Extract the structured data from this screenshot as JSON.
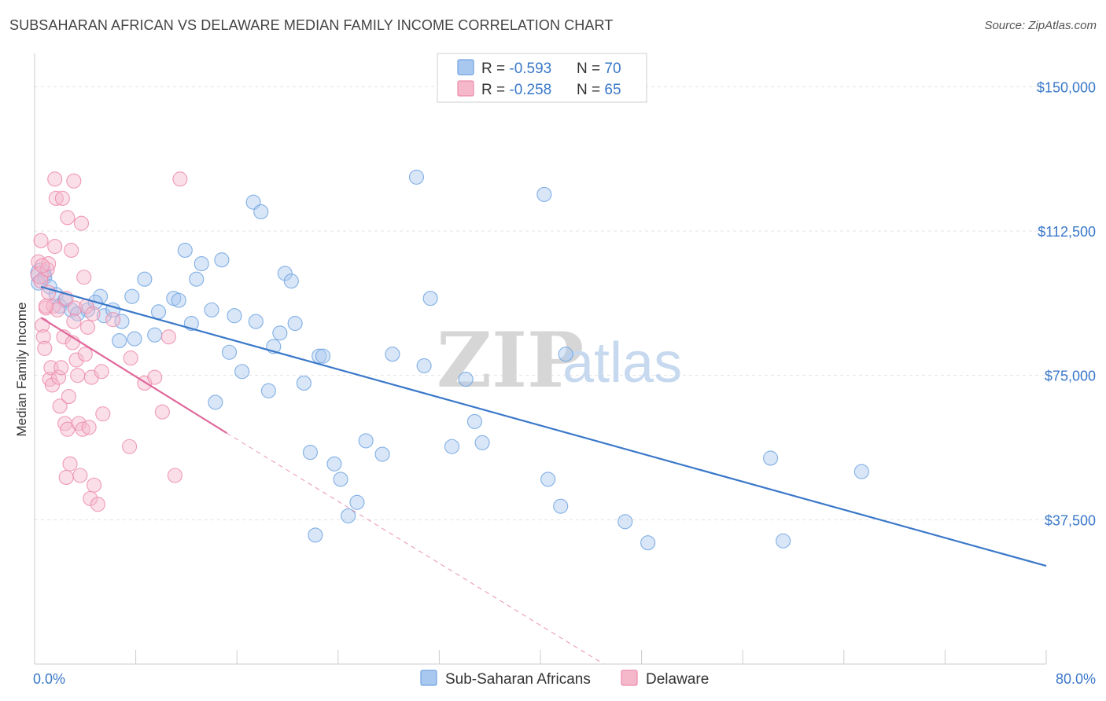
{
  "header": {
    "title": "SUBSAHARAN AFRICAN VS DELAWARE MEDIAN FAMILY INCOME CORRELATION CHART",
    "source": "Source: ZipAtlas.com"
  },
  "watermark": {
    "zip": "ZIP",
    "atlas": "atlas"
  },
  "legend": {
    "rows": [
      {
        "r_label": "R = ",
        "r_value": "-0.593",
        "n_label": "N = ",
        "n_value": "70",
        "color": "#a9c8f0"
      },
      {
        "r_label": "R = ",
        "r_value": "-0.258",
        "n_label": "N = ",
        "n_value": "65",
        "color": "#f5b8cb"
      }
    ]
  },
  "chart_data": {
    "type": "scatter",
    "title": "SUBSAHARAN AFRICAN VS DELAWARE MEDIAN FAMILY INCOME CORRELATION CHART",
    "xlabel": "",
    "ylabel": "Median Family Income",
    "xlim": [
      0,
      80
    ],
    "ylim": [
      0,
      157000
    ],
    "x_tick_labels": {
      "min": "0.0%",
      "max": "80.0%"
    },
    "y_ticks": [
      {
        "value": 37500,
        "label": "$37,500"
      },
      {
        "value": 75000,
        "label": "$75,000"
      },
      {
        "value": 112500,
        "label": "$112,500"
      },
      {
        "value": 150000,
        "label": "$150,000"
      }
    ],
    "grid": true,
    "legend_position": "bottom-center",
    "series": [
      {
        "name": "Sub-Saharan Africans",
        "color": "#6fa3e0",
        "fill": "#a9c8f0",
        "trend": {
          "x0": 0.5,
          "y0": 98000,
          "x1": 80,
          "y1": 25500,
          "color": "#3a78c9"
        },
        "points": [
          [
            0.5,
            101500
          ],
          [
            0.8,
            100500
          ],
          [
            1.2,
            98000
          ],
          [
            1.7,
            96000
          ],
          [
            2.0,
            93000
          ],
          [
            2.4,
            94500
          ],
          [
            2.9,
            92000
          ],
          [
            3.4,
            91000
          ],
          [
            4.2,
            92000
          ],
          [
            5.2,
            95500
          ],
          [
            4.8,
            94000
          ],
          [
            5.5,
            90500
          ],
          [
            6.2,
            92000
          ],
          [
            6.7,
            84000
          ],
          [
            6.9,
            89000
          ],
          [
            7.7,
            95500
          ],
          [
            7.9,
            84500
          ],
          [
            8.7,
            100000
          ],
          [
            9.5,
            85500
          ],
          [
            9.8,
            91500
          ],
          [
            11.0,
            95000
          ],
          [
            11.4,
            94500
          ],
          [
            11.9,
            107500
          ],
          [
            12.4,
            88500
          ],
          [
            12.8,
            100000
          ],
          [
            13.2,
            104000
          ],
          [
            14.0,
            92000
          ],
          [
            14.8,
            105000
          ],
          [
            14.3,
            68000
          ],
          [
            15.4,
            81000
          ],
          [
            15.8,
            90500
          ],
          [
            16.4,
            76000
          ],
          [
            17.3,
            120000
          ],
          [
            17.5,
            89000
          ],
          [
            17.9,
            117500
          ],
          [
            18.5,
            71000
          ],
          [
            18.9,
            82500
          ],
          [
            19.4,
            86000
          ],
          [
            19.8,
            101500
          ],
          [
            20.3,
            99500
          ],
          [
            20.6,
            88500
          ],
          [
            21.3,
            73000
          ],
          [
            21.8,
            55000
          ],
          [
            22.5,
            80000
          ],
          [
            22.8,
            80000
          ],
          [
            22.2,
            33500
          ],
          [
            23.7,
            52000
          ],
          [
            24.2,
            48000
          ],
          [
            24.8,
            38500
          ],
          [
            25.5,
            42000
          ],
          [
            26.2,
            58000
          ],
          [
            27.5,
            54500
          ],
          [
            28.3,
            80500
          ],
          [
            30.2,
            126500
          ],
          [
            30.8,
            77500
          ],
          [
            31.3,
            95000
          ],
          [
            33.0,
            56500
          ],
          [
            34.1,
            74000
          ],
          [
            34.8,
            63000
          ],
          [
            35.4,
            57500
          ],
          [
            40.3,
            122000
          ],
          [
            40.6,
            48000
          ],
          [
            42.0,
            80500
          ],
          [
            41.6,
            41000
          ],
          [
            46.7,
            37000
          ],
          [
            48.5,
            31500
          ],
          [
            58.2,
            53500
          ],
          [
            59.2,
            32000
          ],
          [
            65.4,
            50000
          ],
          [
            0.3,
            99000
          ]
        ]
      },
      {
        "name": "Delaware",
        "color": "#ec8bab",
        "fill": "#f5b8cb",
        "trend": {
          "x0": 0.5,
          "y0": 90000,
          "x1": 15.2,
          "y1": 60000,
          "dash_x1": 45,
          "dash_y1": 0,
          "color": "#e0679a"
        },
        "points": [
          [
            0.3,
            104500
          ],
          [
            0.4,
            101000
          ],
          [
            0.5,
            110000
          ],
          [
            0.5,
            99500
          ],
          [
            0.6,
            88000
          ],
          [
            0.7,
            85000
          ],
          [
            0.8,
            82000
          ],
          [
            0.9,
            92500
          ],
          [
            1.0,
            102500
          ],
          [
            1.1,
            104000
          ],
          [
            1.2,
            74000
          ],
          [
            1.3,
            77000
          ],
          [
            1.4,
            72500
          ],
          [
            1.5,
            93000
          ],
          [
            1.6,
            126000
          ],
          [
            1.7,
            121000
          ],
          [
            1.8,
            92000
          ],
          [
            1.9,
            74500
          ],
          [
            2.0,
            67000
          ],
          [
            2.1,
            77000
          ],
          [
            2.2,
            121000
          ],
          [
            2.3,
            85000
          ],
          [
            2.4,
            62500
          ],
          [
            2.5,
            95000
          ],
          [
            2.6,
            61000
          ],
          [
            2.6,
            116000
          ],
          [
            2.7,
            69500
          ],
          [
            2.8,
            52000
          ],
          [
            2.9,
            107500
          ],
          [
            3.0,
            83500
          ],
          [
            3.1,
            125500
          ],
          [
            3.2,
            92500
          ],
          [
            3.3,
            79000
          ],
          [
            3.4,
            75000
          ],
          [
            3.5,
            62500
          ],
          [
            3.6,
            49000
          ],
          [
            3.7,
            114500
          ],
          [
            3.8,
            61000
          ],
          [
            3.9,
            100500
          ],
          [
            4.0,
            80500
          ],
          [
            4.1,
            93000
          ],
          [
            4.2,
            87500
          ],
          [
            4.3,
            61500
          ],
          [
            4.4,
            43000
          ],
          [
            4.5,
            74500
          ],
          [
            4.6,
            91000
          ],
          [
            4.7,
            46500
          ],
          [
            5.3,
            76000
          ],
          [
            5.0,
            41500
          ],
          [
            5.4,
            65000
          ],
          [
            6.2,
            89500
          ],
          [
            7.5,
            56500
          ],
          [
            7.6,
            79500
          ],
          [
            8.7,
            73000
          ],
          [
            9.5,
            74500
          ],
          [
            10.1,
            65500
          ],
          [
            10.6,
            85000
          ],
          [
            11.1,
            49000
          ],
          [
            11.5,
            126000
          ],
          [
            2.5,
            48500
          ],
          [
            1.1,
            96500
          ],
          [
            0.6,
            103500
          ],
          [
            1.6,
            108500
          ],
          [
            0.9,
            93000
          ],
          [
            3.1,
            89000
          ]
        ]
      }
    ]
  }
}
